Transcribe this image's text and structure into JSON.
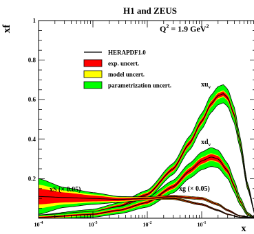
{
  "chart_data": {
    "type": "line",
    "title": "H1 and ZEUS",
    "xlabel": "x",
    "ylabel": "xf",
    "x_scale": "log",
    "xlim": [
      0.0001,
      1
    ],
    "ylim": [
      0,
      1
    ],
    "x_ticks": [
      {
        "value": 0.0001,
        "base": "10",
        "exp": "-4"
      },
      {
        "value": 0.001,
        "base": "10",
        "exp": "-3"
      },
      {
        "value": 0.01,
        "base": "10",
        "exp": "-2"
      },
      {
        "value": 0.1,
        "base": "10",
        "exp": "-1"
      },
      {
        "value": 1,
        "base": "1",
        "exp": ""
      }
    ],
    "y_ticks": [
      {
        "value": 0.2,
        "label": "0.2"
      },
      {
        "value": 0.4,
        "label": "0.4"
      },
      {
        "value": 0.6,
        "label": "0.6"
      },
      {
        "value": 0.8,
        "label": "0.8"
      },
      {
        "value": 1,
        "label": "1"
      }
    ],
    "q2_label": {
      "prefix": "Q",
      "sup1": "2",
      "middle": " =  1.9 GeV",
      "sup2": "2"
    },
    "legend": [
      {
        "label": "HERAPDF1.0",
        "kind": "line",
        "color": "#000000"
      },
      {
        "label": "exp. uncert.",
        "kind": "box",
        "color": "#ff0000"
      },
      {
        "label": "model uncert.",
        "kind": "box",
        "color": "#ffff00"
      },
      {
        "label": "parametrization uncert.",
        "kind": "box",
        "color": "#00ff00"
      }
    ],
    "colors": {
      "exp": "#ff0000",
      "model": "#ffff00",
      "param": "#00ff00",
      "central": "#000000"
    },
    "series": [
      {
        "name": "xu_v",
        "label": {
          "main": "xu",
          "sub": "v"
        },
        "x": [
          0.0001,
          0.001,
          0.003,
          0.01,
          0.03,
          0.06,
          0.1,
          0.15,
          0.2,
          0.25,
          0.3,
          0.4,
          0.5,
          0.7,
          1.0
        ],
        "central": [
          0.005,
          0.03,
          0.06,
          0.12,
          0.25,
          0.38,
          0.49,
          0.58,
          0.62,
          0.63,
          0.61,
          0.52,
          0.39,
          0.16,
          0.0
        ],
        "exp": [
          0.005,
          0.006,
          0.007,
          0.008,
          0.01,
          0.012,
          0.012,
          0.012,
          0.012,
          0.012,
          0.012,
          0.012,
          0.01,
          0.006,
          0.0
        ],
        "model": [
          0.007,
          0.008,
          0.009,
          0.011,
          0.013,
          0.015,
          0.016,
          0.016,
          0.017,
          0.017,
          0.016,
          0.015,
          0.012,
          0.007,
          0.0
        ],
        "param": [
          0.012,
          0.015,
          0.018,
          0.022,
          0.028,
          0.035,
          0.04,
          0.044,
          0.046,
          0.046,
          0.044,
          0.04,
          0.03,
          0.015,
          0.0
        ]
      },
      {
        "name": "xd_v",
        "label": {
          "main": "xd",
          "sub": "v"
        },
        "x": [
          0.0001,
          0.001,
          0.003,
          0.01,
          0.03,
          0.06,
          0.1,
          0.15,
          0.2,
          0.3,
          0.4,
          0.5,
          0.7,
          1.0
        ],
        "central": [
          0.004,
          0.02,
          0.04,
          0.08,
          0.16,
          0.24,
          0.29,
          0.31,
          0.3,
          0.24,
          0.16,
          0.09,
          0.02,
          0.0
        ],
        "exp": [
          0.004,
          0.005,
          0.006,
          0.007,
          0.01,
          0.013,
          0.015,
          0.015,
          0.015,
          0.013,
          0.01,
          0.007,
          0.003,
          0.0
        ],
        "model": [
          0.006,
          0.007,
          0.008,
          0.01,
          0.014,
          0.017,
          0.019,
          0.019,
          0.018,
          0.016,
          0.012,
          0.009,
          0.004,
          0.0
        ],
        "param": [
          0.012,
          0.015,
          0.018,
          0.024,
          0.032,
          0.038,
          0.045,
          0.048,
          0.045,
          0.038,
          0.03,
          0.02,
          0.008,
          0.0
        ]
      },
      {
        "name": "xS",
        "label": {
          "main": "xS (× 0.05)",
          "sub": ""
        },
        "x": [
          0.0001,
          0.0003,
          0.001,
          0.003,
          0.01,
          0.03,
          0.1,
          0.2,
          0.3,
          0.5,
          1.0
        ],
        "central": [
          0.065,
          0.075,
          0.085,
          0.095,
          0.1,
          0.1,
          0.07,
          0.04,
          0.02,
          0.005,
          0.0
        ],
        "exp": [
          0.008,
          0.005,
          0.004,
          0.003,
          0.003,
          0.003,
          0.003,
          0.002,
          0.002,
          0.001,
          0.0
        ],
        "model": [
          0.018,
          0.012,
          0.008,
          0.005,
          0.004,
          0.004,
          0.003,
          0.002,
          0.002,
          0.001,
          0.0
        ],
        "param": [
          0.025,
          0.016,
          0.01,
          0.006,
          0.005,
          0.005,
          0.004,
          0.003,
          0.002,
          0.001,
          0.0
        ]
      },
      {
        "name": "xg",
        "label": {
          "main": "xg (× 0.05)",
          "sub": ""
        },
        "x": [
          0.0001,
          0.0003,
          0.001,
          0.003,
          0.01,
          0.03,
          0.1,
          0.2,
          0.3,
          0.5,
          1.0
        ],
        "central": [
          0.11,
          0.105,
          0.1,
          0.095,
          0.1,
          0.11,
          0.1,
          0.07,
          0.04,
          0.012,
          0.0
        ],
        "exp": [
          0.04,
          0.025,
          0.015,
          0.008,
          0.005,
          0.004,
          0.004,
          0.003,
          0.003,
          0.002,
          0.0
        ],
        "model": [
          0.06,
          0.035,
          0.02,
          0.012,
          0.007,
          0.005,
          0.005,
          0.004,
          0.003,
          0.002,
          0.0
        ],
        "param": [
          0.09,
          0.05,
          0.03,
          0.015,
          0.008,
          0.006,
          0.006,
          0.005,
          0.004,
          0.002,
          0.0
        ]
      }
    ]
  }
}
